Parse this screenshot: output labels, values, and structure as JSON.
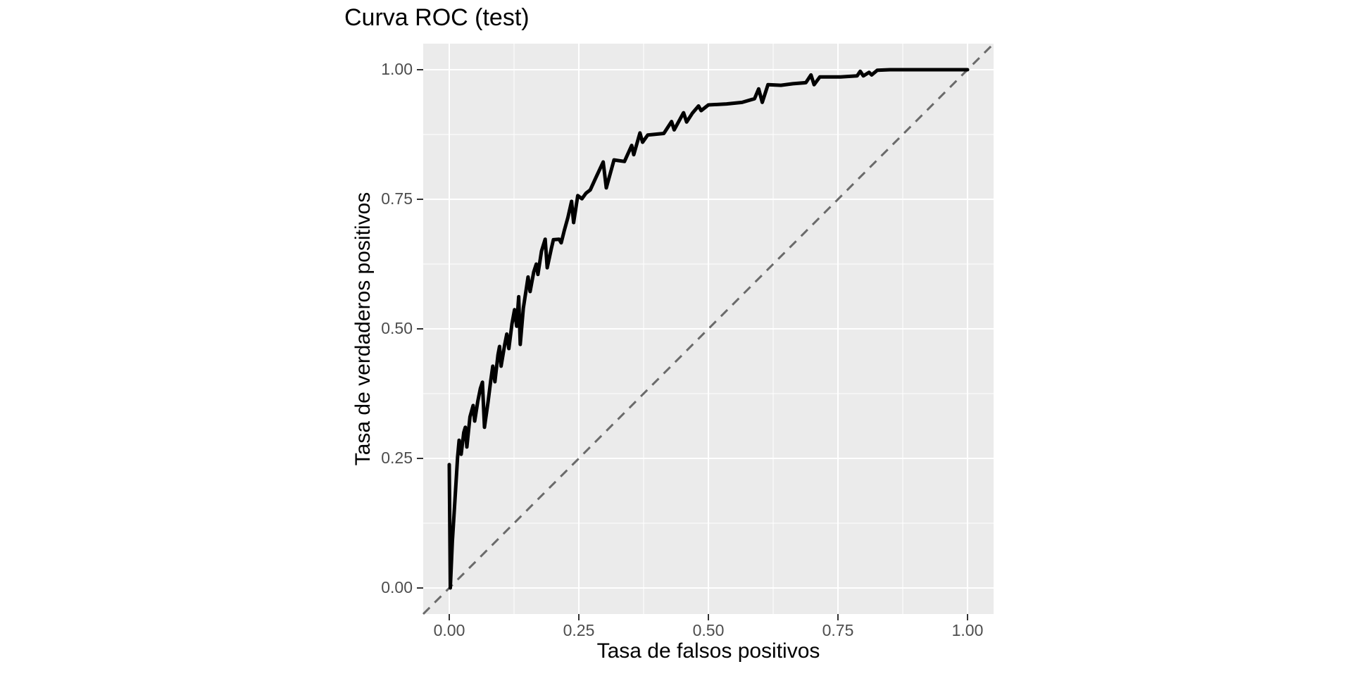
{
  "chart_data": {
    "type": "line",
    "title": "Curva ROC (test)",
    "xlabel": "Tasa de falsos positivos",
    "ylabel": "Tasa de verdaderos positivos",
    "xlim": [
      -0.05,
      1.05
    ],
    "ylim": [
      -0.05,
      1.05
    ],
    "grid": true,
    "legend_position": "none",
    "x_ticks": {
      "values": [
        0,
        0.25,
        0.5,
        0.75,
        1
      ],
      "labels": [
        "0.00",
        "0.25",
        "0.50",
        "0.75",
        "1.00"
      ]
    },
    "y_ticks": {
      "values": [
        0,
        0.25,
        0.5,
        0.75,
        1
      ],
      "labels": [
        "0.00",
        "0.25",
        "0.50",
        "0.75",
        "1.00"
      ]
    },
    "x_minor_breaks": [
      0.125,
      0.375,
      0.625,
      0.875
    ],
    "y_minor_breaks": [
      0.125,
      0.375,
      0.625,
      0.875
    ],
    "style": {
      "panel_bg": "#EBEBEB",
      "grid_color": "#FFFFFF",
      "curve_color": "#000000",
      "diagonal_color": "#6A6A6A",
      "tick_mark_color": "#333333",
      "tick_label_color": "#4D4D4D",
      "title_color": "#000000"
    },
    "series": [
      {
        "name": "roc-curve-test",
        "line_style": "solid",
        "points": [
          [
            0.0,
            0.238
          ],
          [
            0.002,
            0.0
          ],
          [
            0.006,
            0.09
          ],
          [
            0.011,
            0.17
          ],
          [
            0.016,
            0.252
          ],
          [
            0.019,
            0.285
          ],
          [
            0.023,
            0.258
          ],
          [
            0.028,
            0.3
          ],
          [
            0.031,
            0.31
          ],
          [
            0.034,
            0.272
          ],
          [
            0.04,
            0.33
          ],
          [
            0.046,
            0.352
          ],
          [
            0.049,
            0.322
          ],
          [
            0.055,
            0.36
          ],
          [
            0.06,
            0.385
          ],
          [
            0.064,
            0.397
          ],
          [
            0.068,
            0.31
          ],
          [
            0.075,
            0.36
          ],
          [
            0.08,
            0.4
          ],
          [
            0.084,
            0.428
          ],
          [
            0.088,
            0.398
          ],
          [
            0.094,
            0.45
          ],
          [
            0.097,
            0.466
          ],
          [
            0.1,
            0.428
          ],
          [
            0.107,
            0.47
          ],
          [
            0.111,
            0.49
          ],
          [
            0.115,
            0.462
          ],
          [
            0.121,
            0.51
          ],
          [
            0.126,
            0.537
          ],
          [
            0.13,
            0.505
          ],
          [
            0.134,
            0.562
          ],
          [
            0.137,
            0.47
          ],
          [
            0.143,
            0.54
          ],
          [
            0.149,
            0.58
          ],
          [
            0.152,
            0.6
          ],
          [
            0.156,
            0.572
          ],
          [
            0.163,
            0.61
          ],
          [
            0.168,
            0.625
          ],
          [
            0.171,
            0.605
          ],
          [
            0.178,
            0.65
          ],
          [
            0.185,
            0.673
          ],
          [
            0.189,
            0.618
          ],
          [
            0.197,
            0.655
          ],
          [
            0.201,
            0.672
          ],
          [
            0.212,
            0.673
          ],
          [
            0.216,
            0.666
          ],
          [
            0.222,
            0.69
          ],
          [
            0.229,
            0.715
          ],
          [
            0.236,
            0.746
          ],
          [
            0.24,
            0.705
          ],
          [
            0.248,
            0.757
          ],
          [
            0.256,
            0.751
          ],
          [
            0.264,
            0.762
          ],
          [
            0.272,
            0.768
          ],
          [
            0.282,
            0.79
          ],
          [
            0.297,
            0.822
          ],
          [
            0.303,
            0.772
          ],
          [
            0.318,
            0.826
          ],
          [
            0.338,
            0.823
          ],
          [
            0.352,
            0.854
          ],
          [
            0.356,
            0.836
          ],
          [
            0.368,
            0.878
          ],
          [
            0.373,
            0.86
          ],
          [
            0.383,
            0.874
          ],
          [
            0.414,
            0.877
          ],
          [
            0.429,
            0.9
          ],
          [
            0.434,
            0.884
          ],
          [
            0.452,
            0.917
          ],
          [
            0.458,
            0.899
          ],
          [
            0.469,
            0.916
          ],
          [
            0.481,
            0.93
          ],
          [
            0.486,
            0.921
          ],
          [
            0.5,
            0.932
          ],
          [
            0.535,
            0.934
          ],
          [
            0.565,
            0.937
          ],
          [
            0.589,
            0.944
          ],
          [
            0.597,
            0.963
          ],
          [
            0.604,
            0.937
          ],
          [
            0.615,
            0.971
          ],
          [
            0.64,
            0.97
          ],
          [
            0.663,
            0.973
          ],
          [
            0.688,
            0.975
          ],
          [
            0.698,
            0.99
          ],
          [
            0.704,
            0.971
          ],
          [
            0.715,
            0.986
          ],
          [
            0.755,
            0.986
          ],
          [
            0.787,
            0.988
          ],
          [
            0.793,
            0.997
          ],
          [
            0.799,
            0.988
          ],
          [
            0.81,
            0.995
          ],
          [
            0.815,
            0.99
          ],
          [
            0.826,
            0.999
          ],
          [
            0.85,
            1.0
          ],
          [
            1.0,
            1.0
          ]
        ]
      },
      {
        "name": "reference-diagonal",
        "line_style": "dashed",
        "slope": 1,
        "intercept": 0
      }
    ]
  }
}
